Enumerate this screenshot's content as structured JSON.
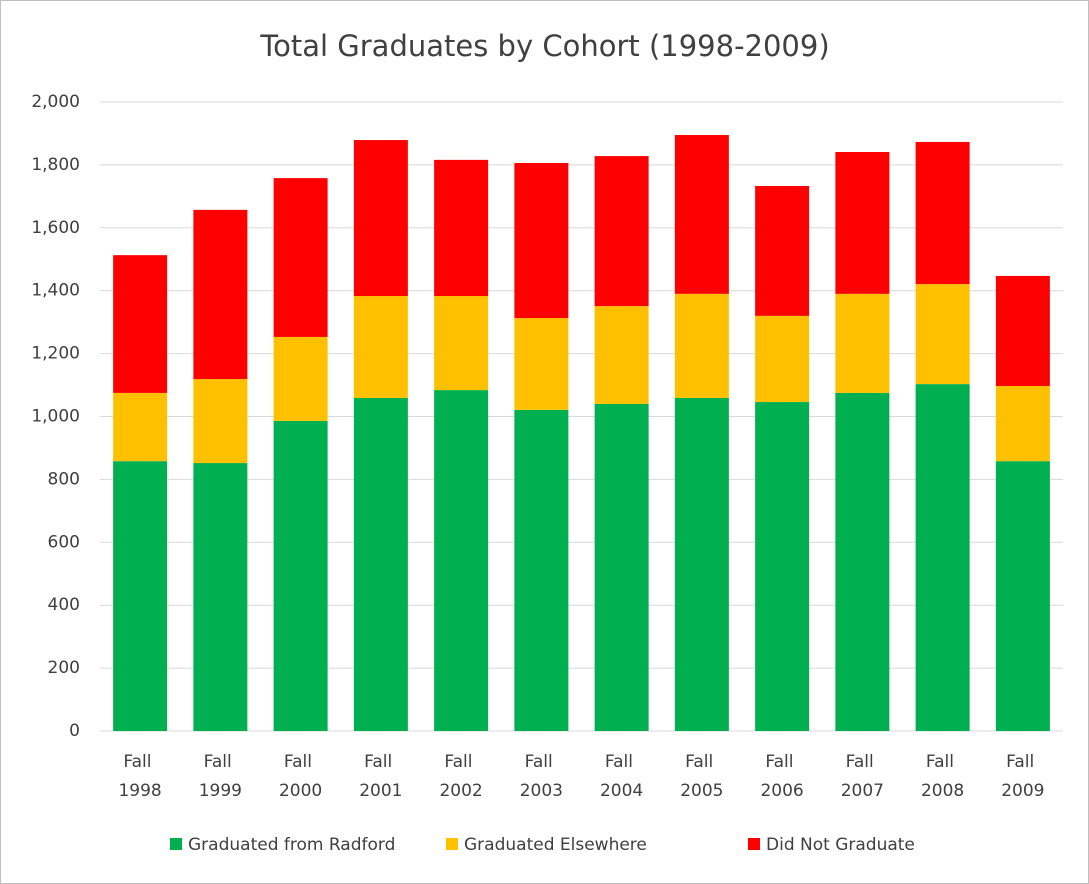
{
  "chart_data": {
    "type": "stacked_bar",
    "title": "Total Graduates by Cohort (1998-2009)",
    "categories": [
      "Fall 1998",
      "Fall 1999",
      "Fall 2000",
      "Fall 2001",
      "Fall 2002",
      "Fall 2003",
      "Fall 2004",
      "Fall 2005",
      "Fall 2006",
      "Fall 2007",
      "Fall 2008",
      "Fall 2009"
    ],
    "series": [
      {
        "name": "Graduated from Radford",
        "color": "#00b050",
        "values": [
          858,
          852,
          986,
          1059,
          1084,
          1021,
          1040,
          1059,
          1046,
          1075,
          1103,
          858
        ]
      },
      {
        "name": "Graduated Elsewhere",
        "color": "#ffc000",
        "values": [
          217,
          267,
          267,
          324,
          299,
          292,
          311,
          331,
          274,
          315,
          318,
          239
        ]
      },
      {
        "name": "Did Not Graduate",
        "color": "#ff0000",
        "values": [
          438,
          538,
          505,
          496,
          433,
          493,
          477,
          505,
          413,
          451,
          452,
          350
        ]
      }
    ],
    "ylim": [
      0,
      2000
    ],
    "yticks": [
      0,
      200,
      400,
      600,
      800,
      {
        "value": 1000,
        "label": "1,000"
      },
      {
        "value": 1200,
        "label": "1,200"
      },
      {
        "value": 1400,
        "label": "1,400"
      },
      {
        "value": 1600,
        "label": "1,600"
      },
      {
        "value": 1800,
        "label": "1,800"
      },
      {
        "value": 2000,
        "label": "2,000"
      }
    ],
    "grid": true,
    "legend": "bottom"
  }
}
